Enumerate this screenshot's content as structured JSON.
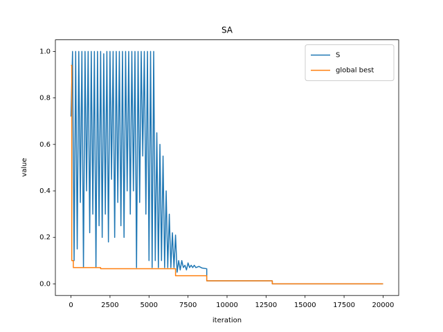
{
  "chart_data": {
    "type": "line",
    "title": "SA",
    "x_label": "iteration",
    "y_label": "value",
    "xlim": [
      -1000,
      21000
    ],
    "ylim": [
      -0.05,
      1.05
    ],
    "xticks": [
      0,
      2500,
      5000,
      7500,
      10000,
      12500,
      15000,
      17500,
      20000
    ],
    "yticks": [
      {
        "value": 0,
        "label": "0.0"
      },
      0.2,
      0.4,
      0.6,
      0.8,
      {
        "value": 1,
        "label": "1.0"
      }
    ],
    "legend": "upper right",
    "grid": false,
    "series": [
      {
        "name": "S",
        "color": "#1f77b4",
        "x": [
          0,
          100,
          200,
          300,
          400,
          500,
          600,
          700,
          800,
          900,
          1000,
          1100,
          1200,
          1300,
          1400,
          1500,
          1600,
          1700,
          1800,
          1900,
          2000,
          2100,
          2200,
          2300,
          2400,
          2500,
          2600,
          2700,
          2800,
          2900,
          3000,
          3100,
          3200,
          3300,
          3400,
          3500,
          3600,
          3700,
          3800,
          3900,
          4000,
          4100,
          4200,
          4300,
          4400,
          4500,
          4600,
          4700,
          4800,
          4900,
          5000,
          5100,
          5200,
          5300,
          5400,
          5500,
          5600,
          5700,
          5800,
          5900,
          6000,
          6100,
          6200,
          6300,
          6400,
          6500,
          6600,
          6700,
          6800,
          6900,
          7000,
          7100,
          7200,
          7300,
          7400,
          7500,
          7600,
          7700,
          7800,
          7900,
          8000,
          8200,
          8400,
          8700,
          8700,
          12900,
          12900,
          20000
        ],
        "values": [
          0.72,
          1.0,
          0.1,
          1.0,
          0.15,
          1.0,
          0.35,
          1.0,
          0.07,
          1.0,
          0.4,
          1.0,
          0.22,
          1.0,
          0.3,
          1.0,
          0.07,
          1.0,
          0.25,
          1.0,
          0.2,
          0.99,
          0.3,
          1.0,
          0.18,
          1.0,
          0.45,
          1.0,
          0.2,
          1.0,
          0.35,
          1.0,
          0.25,
          1.0,
          0.2,
          1.0,
          0.4,
          1.0,
          0.3,
          1.0,
          0.4,
          1.0,
          0.07,
          1.0,
          0.35,
          1.0,
          0.55,
          1.0,
          0.3,
          1.0,
          0.1,
          1.0,
          0.07,
          1.0,
          0.1,
          0.65,
          0.07,
          0.6,
          0.1,
          0.55,
          0.07,
          0.4,
          0.07,
          0.3,
          0.07,
          0.22,
          0.07,
          0.21,
          0.05,
          0.1,
          0.06,
          0.1,
          0.07,
          0.08,
          0.06,
          0.09,
          0.07,
          0.08,
          0.07,
          0.08,
          0.07,
          0.075,
          0.068,
          0.065,
          0.013,
          0.013,
          0.0,
          0.0
        ]
      },
      {
        "name": "global best",
        "color": "#ff7f0e",
        "x": [
          0,
          50,
          50,
          150,
          150,
          1900,
          1900,
          6700,
          6700,
          8700,
          8700,
          12900,
          12900,
          20000
        ],
        "values": [
          0.94,
          0.94,
          0.1,
          0.1,
          0.07,
          0.07,
          0.065,
          0.065,
          0.035,
          0.035,
          0.013,
          0.013,
          0.0,
          0.0
        ]
      }
    ]
  }
}
